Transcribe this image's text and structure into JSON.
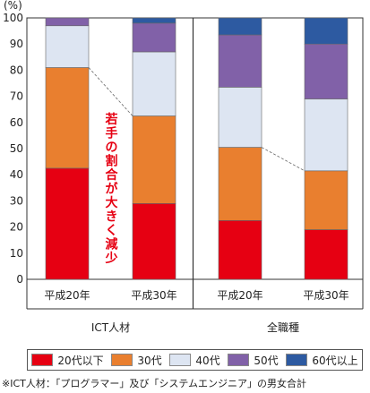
{
  "chart_data": {
    "type": "bar",
    "stacked": true,
    "ylabel": "(%)",
    "ylim": [
      0,
      100
    ],
    "yticks": [
      0,
      10,
      20,
      30,
      40,
      50,
      60,
      70,
      80,
      90,
      100
    ],
    "groups": [
      {
        "name": "ICT人材",
        "categories": [
          "平成20年",
          "平成30年"
        ]
      },
      {
        "name": "全職種",
        "categories": [
          "平成20年",
          "平成30年"
        ]
      }
    ],
    "categories": [
      "平成20年",
      "平成30年",
      "平成20年",
      "平成30年"
    ],
    "series": [
      {
        "name": "20代以下",
        "color": "#e60012",
        "values": [
          42.5,
          29,
          22.5,
          19
        ]
      },
      {
        "name": "30代",
        "color": "#e97f2f",
        "values": [
          38.5,
          33.5,
          28,
          22.5
        ]
      },
      {
        "name": "40代",
        "color": "#dde5f2",
        "values": [
          16,
          24.5,
          23,
          27.5
        ]
      },
      {
        "name": "50代",
        "color": "#8161a8",
        "values": [
          3,
          11,
          20,
          21
        ]
      },
      {
        "name": "60代以上",
        "color": "#2d5aa1",
        "values": [
          0,
          2,
          6.5,
          10
        ]
      }
    ],
    "annotation": {
      "text": "若手の割合が大きく減少",
      "color": "#e60012"
    }
  },
  "footnote": "※ICT人材：「プログラマー」及び「システムエンジニア」の男女合計"
}
